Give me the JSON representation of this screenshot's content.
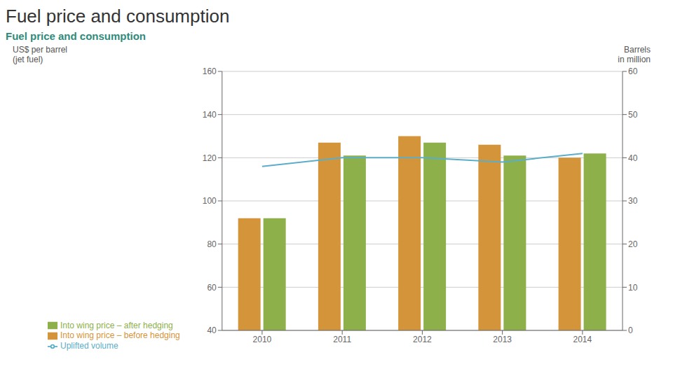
{
  "chart_data": {
    "type": "bar",
    "title": "Fuel price and consumption",
    "subtitle": "Fuel price and consumption",
    "categories": [
      "2010",
      "2011",
      "2012",
      "2013",
      "2014"
    ],
    "series": [
      {
        "name": "Into wing price – before hedging",
        "type": "bar",
        "color": "#D4943A",
        "values": [
          92,
          127,
          130,
          126,
          120
        ]
      },
      {
        "name": "Into wing price – after hedging",
        "type": "bar",
        "color": "#8DB04B",
        "values": [
          92,
          121,
          127,
          121,
          122
        ]
      },
      {
        "name": "Uplifted volume",
        "type": "line",
        "axis": "y2",
        "color": "#5BAEC8",
        "values": [
          38,
          40,
          40,
          39,
          41
        ]
      }
    ],
    "ylim": [
      40,
      160
    ],
    "yticks": [
      40,
      60,
      80,
      100,
      120,
      140,
      160
    ],
    "y2lim": [
      0,
      60
    ],
    "y2ticks": [
      0,
      10,
      20,
      30,
      40,
      50,
      60
    ],
    "ylabel": [
      "US$ per barrel",
      "(jet fuel)"
    ],
    "y2label": [
      "Barrels",
      "in million"
    ],
    "grid": true,
    "legend": "bottom"
  }
}
